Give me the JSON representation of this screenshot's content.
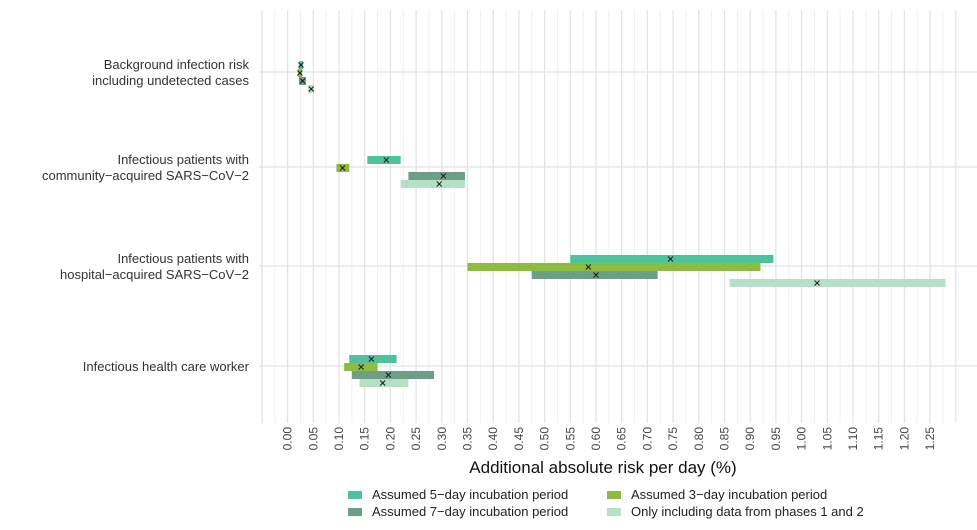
{
  "chart_data": {
    "type": "interval",
    "xlabel": "Additional absolute risk per day (%)",
    "xlim": [
      -0.05,
      1.3
    ],
    "x_ticks": [
      "0.00",
      "0.05",
      "0.10",
      "0.15",
      "0.20",
      "0.25",
      "0.30",
      "0.35",
      "0.40",
      "0.45",
      "0.50",
      "0.55",
      "0.60",
      "0.65",
      "0.70",
      "0.75",
      "0.80",
      "0.85",
      "0.90",
      "0.95",
      "1.00",
      "1.05",
      "1.10",
      "1.15",
      "1.20",
      "1.25"
    ],
    "categories": [
      "Background infection risk\nincluding undetected cases",
      "Infectious patients with\ncommunity−acquired SARS−CoV−2",
      "Infectious patients with\nhospital−acquired SARS−CoV−2",
      "Infectious health care worker"
    ],
    "series": [
      {
        "name": "Assumed 5−day incubation period",
        "color": "#4cc39b",
        "intervals": [
          {
            "category": 0,
            "low": 0.022,
            "high": 0.03,
            "estimate": 0.026
          },
          {
            "category": 1,
            "low": 0.155,
            "high": 0.22,
            "estimate": 0.192
          },
          {
            "category": 2,
            "low": 0.55,
            "high": 0.945,
            "estimate": 0.745
          },
          {
            "category": 3,
            "low": 0.12,
            "high": 0.212,
            "estimate": 0.163
          }
        ]
      },
      {
        "name": "Assumed 3−day incubation period",
        "color": "#8fbc3f",
        "intervals": [
          {
            "category": 0,
            "low": 0.02,
            "high": 0.028,
            "estimate": 0.024
          },
          {
            "category": 1,
            "low": 0.095,
            "high": 0.12,
            "estimate": 0.107
          },
          {
            "category": 2,
            "low": 0.35,
            "high": 0.92,
            "estimate": 0.585
          },
          {
            "category": 3,
            "low": 0.11,
            "high": 0.175,
            "estimate": 0.143
          }
        ]
      },
      {
        "name": "Assumed 7−day incubation period",
        "color": "#6e9e88",
        "intervals": [
          {
            "category": 0,
            "low": 0.022,
            "high": 0.036,
            "estimate": 0.029
          },
          {
            "category": 1,
            "low": 0.235,
            "high": 0.345,
            "estimate": 0.303
          },
          {
            "category": 2,
            "low": 0.475,
            "high": 0.72,
            "estimate": 0.6
          },
          {
            "category": 3,
            "low": 0.125,
            "high": 0.285,
            "estimate": 0.196
          }
        ]
      },
      {
        "name": "Only including data from phases 1 and 2",
        "color": "#b5dfc6",
        "intervals": [
          {
            "category": 0,
            "low": 0.04,
            "high": 0.05,
            "estimate": 0.046
          },
          {
            "category": 1,
            "low": 0.22,
            "high": 0.345,
            "estimate": 0.295
          },
          {
            "category": 2,
            "low": 0.86,
            "high": 1.28,
            "estimate": 1.03
          },
          {
            "category": 3,
            "low": 0.14,
            "high": 0.235,
            "estimate": 0.185
          }
        ]
      }
    ],
    "legend_position": "bottom",
    "grid": true
  }
}
